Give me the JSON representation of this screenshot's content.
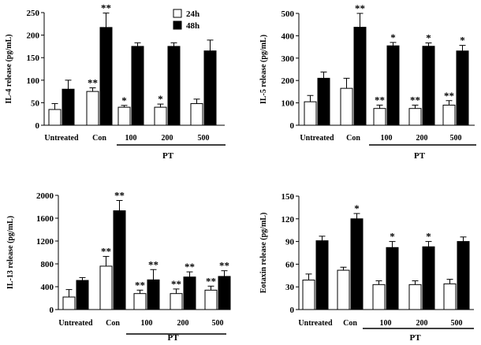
{
  "legend": {
    "items": [
      "24h",
      "48h"
    ],
    "colors": [
      "#ffffff",
      "#000000"
    ]
  },
  "categories": [
    "Untreated",
    "Con",
    "100",
    "200",
    "500"
  ],
  "group_label": "PT",
  "chart_data": [
    {
      "type": "bar",
      "title": "",
      "ylabel": "IL-4  release (pg/mL)",
      "xlabel": "",
      "ylim": [
        0,
        250
      ],
      "yticks": [
        0,
        50,
        100,
        150,
        200,
        250
      ],
      "categories": [
        "Untreated",
        "Con",
        "100",
        "200",
        "500"
      ],
      "group_label": "PT",
      "show_legend": true,
      "series": [
        {
          "name": "24h",
          "values": [
            35,
            75,
            40,
            40,
            48
          ],
          "errors": [
            13,
            8,
            4,
            7,
            10
          ],
          "sig": [
            "",
            "**",
            "*",
            "*",
            ""
          ]
        },
        {
          "name": "48h",
          "values": [
            80,
            217,
            175,
            175,
            165
          ],
          "errors": [
            20,
            32,
            8,
            8,
            24
          ],
          "sig": [
            "",
            "**",
            "",
            "",
            ""
          ]
        }
      ]
    },
    {
      "type": "bar",
      "title": "",
      "ylabel": "IL-5  release (pg/mL)",
      "xlabel": "",
      "ylim": [
        0,
        500
      ],
      "yticks": [
        0,
        100,
        200,
        300,
        400,
        500
      ],
      "categories": [
        "Untreated",
        "Con",
        "100",
        "200",
        "500"
      ],
      "group_label": "PT",
      "show_legend": false,
      "series": [
        {
          "name": "24h",
          "values": [
            105,
            165,
            75,
            75,
            90
          ],
          "errors": [
            28,
            45,
            15,
            15,
            20
          ],
          "sig": [
            "",
            "",
            "**",
            "**",
            "**"
          ]
        },
        {
          "name": "48h",
          "values": [
            210,
            438,
            355,
            353,
            332
          ],
          "errors": [
            28,
            62,
            15,
            15,
            25
          ],
          "sig": [
            "",
            "**",
            "*",
            "*",
            "*"
          ]
        }
      ]
    },
    {
      "type": "bar",
      "title": "",
      "ylabel": "IL-13  release (pg/mL)",
      "xlabel": "",
      "ylim": [
        0,
        2000
      ],
      "yticks": [
        0,
        400,
        800,
        1200,
        1600,
        2000
      ],
      "categories": [
        "Untreated",
        "Con",
        "100",
        "200",
        "500"
      ],
      "group_label": "PT",
      "show_legend": false,
      "series": [
        {
          "name": "24h",
          "values": [
            220,
            760,
            280,
            280,
            340
          ],
          "errors": [
            130,
            170,
            60,
            80,
            70
          ],
          "sig": [
            "",
            "**",
            "**",
            "**",
            "**"
          ]
        },
        {
          "name": "48h",
          "values": [
            510,
            1730,
            520,
            570,
            580
          ],
          "errors": [
            50,
            180,
            180,
            90,
            100
          ],
          "sig": [
            "",
            "**",
            "**",
            "**",
            "**"
          ]
        }
      ]
    },
    {
      "type": "bar",
      "title": "",
      "ylabel": "Eotaxin release (pg/mL)",
      "xlabel": "",
      "ylim": [
        0,
        150
      ],
      "yticks": [
        0,
        30,
        60,
        90,
        120,
        150
      ],
      "categories": [
        "Untreated",
        "Con",
        "100",
        "200",
        "500"
      ],
      "group_label": "PT",
      "show_legend": false,
      "series": [
        {
          "name": "24h",
          "values": [
            39,
            52,
            33,
            33,
            34
          ],
          "errors": [
            8,
            4,
            5,
            5,
            6
          ],
          "sig": [
            "",
            "",
            "",
            "",
            ""
          ]
        },
        {
          "name": "48h",
          "values": [
            91,
            120,
            82,
            83,
            90
          ],
          "errors": [
            6,
            7,
            8,
            7,
            6
          ],
          "sig": [
            "",
            "*",
            "*",
            "*",
            ""
          ]
        }
      ]
    }
  ]
}
